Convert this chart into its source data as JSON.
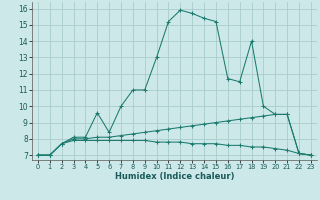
{
  "xlabel": "Humidex (Indice chaleur)",
  "bg_color": "#cde8e8",
  "grid_color": "#aacccc",
  "line_color": "#1a7a6e",
  "x_ticks": [
    0,
    1,
    2,
    3,
    4,
    5,
    6,
    7,
    8,
    9,
    10,
    11,
    12,
    13,
    14,
    15,
    16,
    17,
    18,
    19,
    20,
    21,
    22,
    23
  ],
  "y_ticks": [
    7,
    8,
    9,
    10,
    11,
    12,
    13,
    14,
    15,
    16
  ],
  "ylim": [
    6.7,
    16.4
  ],
  "xlim": [
    -0.5,
    23.5
  ],
  "series": [
    {
      "x": [
        0,
        1,
        2,
        3,
        4,
        5,
        6,
        7,
        8,
        9,
        10,
        11,
        12,
        13,
        14,
        15,
        16,
        17,
        18,
        19,
        20,
        21,
        22,
        23
      ],
      "y": [
        7.0,
        7.0,
        7.7,
        8.1,
        8.1,
        9.6,
        8.4,
        10.0,
        11.0,
        11.0,
        13.0,
        15.2,
        15.9,
        15.7,
        15.4,
        15.2,
        11.7,
        11.5,
        14.0,
        10.0,
        9.5,
        9.5,
        7.1,
        7.0
      ]
    },
    {
      "x": [
        0,
        1,
        2,
        3,
        4,
        5,
        6,
        7,
        8,
        9,
        10,
        11,
        12,
        13,
        14,
        15,
        16,
        17,
        18,
        19,
        20,
        21,
        22,
        23
      ],
      "y": [
        7.0,
        7.0,
        7.7,
        8.0,
        8.0,
        8.1,
        8.1,
        8.2,
        8.3,
        8.4,
        8.5,
        8.6,
        8.7,
        8.8,
        8.9,
        9.0,
        9.1,
        9.2,
        9.3,
        9.4,
        9.5,
        9.5,
        7.1,
        7.0
      ]
    },
    {
      "x": [
        0,
        1,
        2,
        3,
        4,
        5,
        6,
        7,
        8,
        9,
        10,
        11,
        12,
        13,
        14,
        15,
        16,
        17,
        18,
        19,
        20,
        21,
        22,
        23
      ],
      "y": [
        7.0,
        7.0,
        7.7,
        7.9,
        7.9,
        7.9,
        7.9,
        7.9,
        7.9,
        7.9,
        7.8,
        7.8,
        7.8,
        7.7,
        7.7,
        7.7,
        7.6,
        7.6,
        7.5,
        7.5,
        7.4,
        7.3,
        7.1,
        7.0
      ]
    }
  ]
}
